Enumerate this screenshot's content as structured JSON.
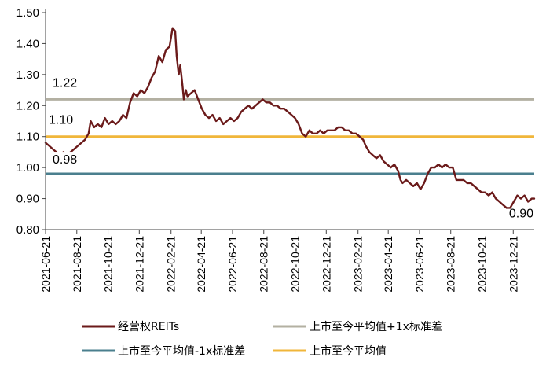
{
  "chart_data": {
    "type": "line",
    "y_ticks": [
      "1.50",
      "1.40",
      "1.30",
      "1.20",
      "1.10",
      "1.00",
      "0.90",
      "0.80"
    ],
    "ylim": [
      0.8,
      1.5
    ],
    "x_ticks": [
      "2021-06-21",
      "2021-08-21",
      "2021-10-21",
      "2021-12-21",
      "2022-02-21",
      "2022-04-21",
      "2022-06-21",
      "2022-08-21",
      "2022-10-21",
      "2022-12-21",
      "2023-02-21",
      "2023-04-21",
      "2023-06-21",
      "2023-08-21",
      "2023-10-21",
      "2023-12-21"
    ],
    "xlim": [
      "2021-06-21",
      "2024-01-31"
    ],
    "grid": false,
    "legend_position": "bottom",
    "series": [
      {
        "name": "经营权REITs",
        "color": "#6b1a1a",
        "points": [
          [
            "2021-06-21",
            1.08
          ],
          [
            "2021-06-28",
            1.07
          ],
          [
            "2021-07-05",
            1.06
          ],
          [
            "2021-07-12",
            1.05
          ],
          [
            "2021-07-19",
            1.04
          ],
          [
            "2021-07-26",
            1.05
          ],
          [
            "2021-08-02",
            1.04
          ],
          [
            "2021-08-09",
            1.05
          ],
          [
            "2021-08-16",
            1.06
          ],
          [
            "2021-08-23",
            1.07
          ],
          [
            "2021-08-30",
            1.08
          ],
          [
            "2021-09-06",
            1.09
          ],
          [
            "2021-09-13",
            1.11
          ],
          [
            "2021-09-17",
            1.15
          ],
          [
            "2021-09-24",
            1.13
          ],
          [
            "2021-10-01",
            1.14
          ],
          [
            "2021-10-08",
            1.13
          ],
          [
            "2021-10-15",
            1.16
          ],
          [
            "2021-10-22",
            1.14
          ],
          [
            "2021-10-29",
            1.15
          ],
          [
            "2021-11-05",
            1.14
          ],
          [
            "2021-11-12",
            1.15
          ],
          [
            "2021-11-19",
            1.17
          ],
          [
            "2021-11-26",
            1.16
          ],
          [
            "2021-12-03",
            1.21
          ],
          [
            "2021-12-10",
            1.24
          ],
          [
            "2021-12-17",
            1.23
          ],
          [
            "2021-12-24",
            1.25
          ],
          [
            "2021-12-31",
            1.24
          ],
          [
            "2022-01-07",
            1.26
          ],
          [
            "2022-01-14",
            1.29
          ],
          [
            "2022-01-21",
            1.31
          ],
          [
            "2022-01-28",
            1.36
          ],
          [
            "2022-02-04",
            1.34
          ],
          [
            "2022-02-11",
            1.38
          ],
          [
            "2022-02-18",
            1.39
          ],
          [
            "2022-02-24",
            1.45
          ],
          [
            "2022-03-01",
            1.44
          ],
          [
            "2022-03-04",
            1.36
          ],
          [
            "2022-03-08",
            1.3
          ],
          [
            "2022-03-11",
            1.33
          ],
          [
            "2022-03-15",
            1.27
          ],
          [
            "2022-03-18",
            1.22
          ],
          [
            "2022-03-22",
            1.25
          ],
          [
            "2022-03-25",
            1.23
          ],
          [
            "2022-04-01",
            1.24
          ],
          [
            "2022-04-08",
            1.25
          ],
          [
            "2022-04-15",
            1.22
          ],
          [
            "2022-04-22",
            1.19
          ],
          [
            "2022-04-29",
            1.17
          ],
          [
            "2022-05-06",
            1.16
          ],
          [
            "2022-05-13",
            1.17
          ],
          [
            "2022-05-20",
            1.15
          ],
          [
            "2022-05-27",
            1.16
          ],
          [
            "2022-06-03",
            1.14
          ],
          [
            "2022-06-10",
            1.15
          ],
          [
            "2022-06-17",
            1.16
          ],
          [
            "2022-06-24",
            1.15
          ],
          [
            "2022-07-01",
            1.16
          ],
          [
            "2022-07-08",
            1.18
          ],
          [
            "2022-07-15",
            1.19
          ],
          [
            "2022-07-22",
            1.2
          ],
          [
            "2022-07-29",
            1.19
          ],
          [
            "2022-08-05",
            1.2
          ],
          [
            "2022-08-12",
            1.21
          ],
          [
            "2022-08-19",
            1.22
          ],
          [
            "2022-08-26",
            1.21
          ],
          [
            "2022-09-02",
            1.21
          ],
          [
            "2022-09-09",
            1.2
          ],
          [
            "2022-09-16",
            1.2
          ],
          [
            "2022-09-23",
            1.19
          ],
          [
            "2022-09-30",
            1.19
          ],
          [
            "2022-10-07",
            1.18
          ],
          [
            "2022-10-14",
            1.17
          ],
          [
            "2022-10-21",
            1.16
          ],
          [
            "2022-10-28",
            1.14
          ],
          [
            "2022-11-04",
            1.11
          ],
          [
            "2022-11-11",
            1.1
          ],
          [
            "2022-11-18",
            1.12
          ],
          [
            "2022-11-25",
            1.11
          ],
          [
            "2022-12-02",
            1.11
          ],
          [
            "2022-12-09",
            1.12
          ],
          [
            "2022-12-16",
            1.11
          ],
          [
            "2022-12-23",
            1.12
          ],
          [
            "2022-12-30",
            1.12
          ],
          [
            "2023-01-06",
            1.12
          ],
          [
            "2023-01-13",
            1.13
          ],
          [
            "2023-01-20",
            1.13
          ],
          [
            "2023-01-27",
            1.12
          ],
          [
            "2023-02-03",
            1.12
          ],
          [
            "2023-02-10",
            1.11
          ],
          [
            "2023-02-17",
            1.11
          ],
          [
            "2023-02-24",
            1.1
          ],
          [
            "2023-03-03",
            1.09
          ],
          [
            "2023-03-08",
            1.07
          ],
          [
            "2023-03-15",
            1.05
          ],
          [
            "2023-03-22",
            1.04
          ],
          [
            "2023-03-29",
            1.03
          ],
          [
            "2023-04-05",
            1.04
          ],
          [
            "2023-04-12",
            1.02
          ],
          [
            "2023-04-19",
            1.01
          ],
          [
            "2023-04-26",
            1.0
          ],
          [
            "2023-05-03",
            1.01
          ],
          [
            "2023-05-10",
            0.99
          ],
          [
            "2023-05-15",
            0.96
          ],
          [
            "2023-05-19",
            0.95
          ],
          [
            "2023-05-26",
            0.96
          ],
          [
            "2023-06-02",
            0.95
          ],
          [
            "2023-06-09",
            0.94
          ],
          [
            "2023-06-16",
            0.95
          ],
          [
            "2023-06-23",
            0.93
          ],
          [
            "2023-06-30",
            0.95
          ],
          [
            "2023-07-07",
            0.98
          ],
          [
            "2023-07-14",
            1.0
          ],
          [
            "2023-07-21",
            1.0
          ],
          [
            "2023-07-28",
            1.01
          ],
          [
            "2023-08-04",
            1.0
          ],
          [
            "2023-08-11",
            1.01
          ],
          [
            "2023-08-18",
            1.0
          ],
          [
            "2023-08-25",
            1.0
          ],
          [
            "2023-09-01",
            0.96
          ],
          [
            "2023-09-08",
            0.96
          ],
          [
            "2023-09-15",
            0.96
          ],
          [
            "2023-09-22",
            0.95
          ],
          [
            "2023-09-29",
            0.95
          ],
          [
            "2023-10-06",
            0.94
          ],
          [
            "2023-10-13",
            0.93
          ],
          [
            "2023-10-20",
            0.92
          ],
          [
            "2023-10-27",
            0.92
          ],
          [
            "2023-11-03",
            0.91
          ],
          [
            "2023-11-10",
            0.92
          ],
          [
            "2023-11-17",
            0.9
          ],
          [
            "2023-11-24",
            0.89
          ],
          [
            "2023-12-01",
            0.88
          ],
          [
            "2023-12-08",
            0.87
          ],
          [
            "2023-12-15",
            0.87
          ],
          [
            "2023-12-22",
            0.89
          ],
          [
            "2023-12-29",
            0.91
          ],
          [
            "2024-01-05",
            0.9
          ],
          [
            "2024-01-12",
            0.91
          ],
          [
            "2024-01-19",
            0.89
          ],
          [
            "2024-01-26",
            0.9
          ],
          [
            "2024-01-31",
            0.9
          ]
        ]
      }
    ],
    "reference_lines": [
      {
        "name": "上市至今平均值+1x标准差",
        "value": 1.22,
        "label": "1.22",
        "color": "#b3b0a2"
      },
      {
        "name": "上市至今平均值",
        "value": 1.1,
        "label": "1.10",
        "color": "#f0b63a"
      },
      {
        "name": "上市至今平均值-1x标准差",
        "value": 0.98,
        "label": "0.98",
        "color": "#4a7f8e"
      }
    ],
    "end_label": "0.90",
    "legend": [
      {
        "name": "经营权REITs",
        "color": "#6b1a1a"
      },
      {
        "name": "上市至今平均值+1x标准差",
        "color": "#b3b0a2"
      },
      {
        "name": "上市至今平均值-1x标准差",
        "color": "#4a7f8e"
      },
      {
        "name": "上市至今平均值",
        "color": "#f0b63a"
      }
    ]
  }
}
